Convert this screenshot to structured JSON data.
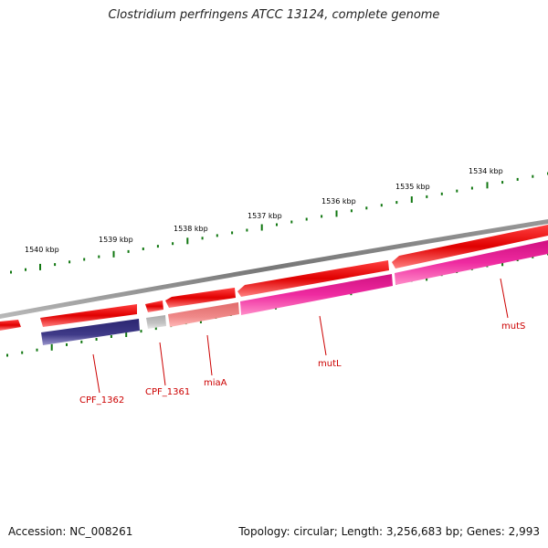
{
  "title": "Clostridium perfringens ATCC 13124, complete genome",
  "footer": {
    "accession": "Accession: NC_008261",
    "summary": "Topology: circular; Length: 3,256,683 bp; Genes: 2,993"
  },
  "scale_labels": [
    "1540 kbp",
    "1539 kbp",
    "1538 kbp",
    "1537 kbp",
    "1536 kbp",
    "1535 kbp",
    "1534 kbp"
  ],
  "gene_labels": [
    "CPF_1362",
    "CPF_1361",
    "miaA",
    "mutL",
    "mutS"
  ],
  "colors": {
    "backbone": "#888888",
    "forward_cds": "#ee0000",
    "reverse_cds_magenta": "#ee1a9a",
    "reverse_cds_navy": "#3a3580",
    "reverse_cds_gray": "#bbbbbb",
    "reverse_cds_salmon": "#ee7a7a",
    "tick": "#117711",
    "label": "#cc0000"
  }
}
